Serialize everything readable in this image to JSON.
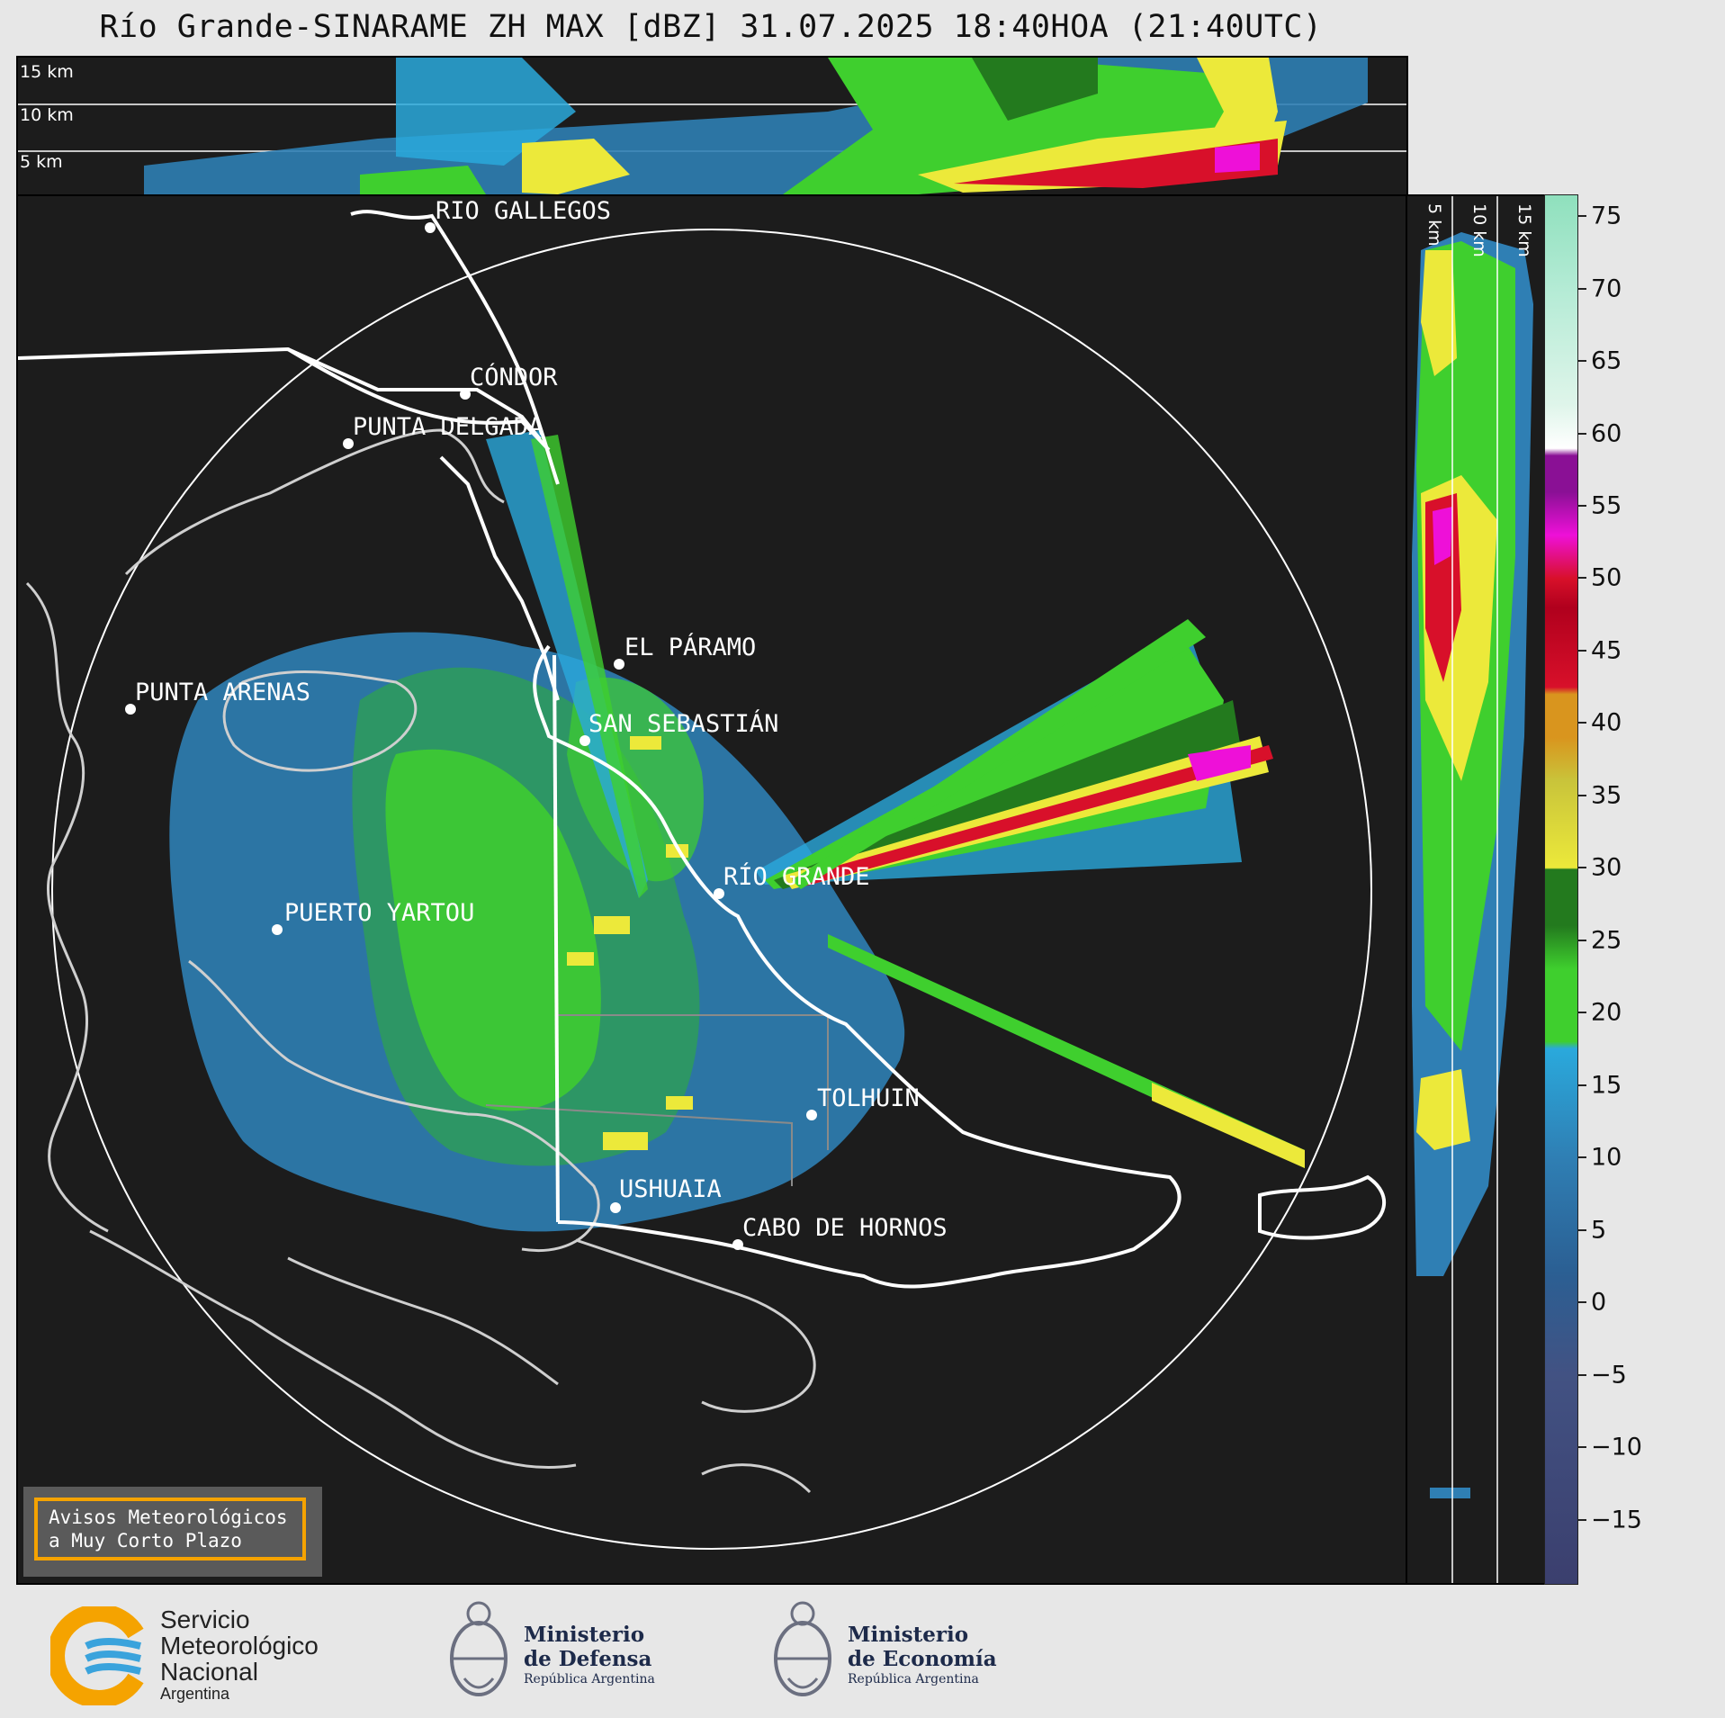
{
  "title": "Río Grande-SINARAME ZH MAX [dBZ] 31.07.2025 18:40HOA (21:40UTC)",
  "height_ref_top": [
    "15 km",
    "10 km",
    "5 km"
  ],
  "height_ref_side": [
    "5 km",
    "10 km",
    "15 km"
  ],
  "cities": {
    "rio_gallegos": "RIO GALLEGOS",
    "condor": "CÓNDOR",
    "punta_delgada": "PUNTA DELGADA",
    "el_paramo": "EL PÁRAMO",
    "punta_arenas": "PUNTA ARENAS",
    "san_sebastian": "SAN SEBASTIÁN",
    "rio_grande": "RÍO GRANDE",
    "puerto_yartou": "PUERTO YARTOU",
    "tolhuin": "TOLHUIN",
    "ushuaia": "USHUAIA",
    "cabo_de_hornos": "CABO DE HORNOS"
  },
  "colorbar": {
    "labels": [
      "75",
      "70",
      "65",
      "60",
      "55",
      "50",
      "45",
      "40",
      "35",
      "30",
      "25",
      "20",
      "15",
      "10",
      "5",
      "0",
      "−5",
      "−10",
      "−15"
    ],
    "range": [
      -19.5,
      76.5
    ],
    "colors": {
      "very_low": "#3b3f6e",
      "low": "#2f7fb4",
      "blue": "#2aa9dc",
      "green": "#3fcf2e",
      "dark_green": "#237a1e",
      "yellow": "#ece93a",
      "orange": "#d9951e",
      "red": "#d8102a",
      "magenta": "#ee10d8",
      "purple": "#8a1095",
      "white": "#ffffff",
      "pale_green": "#8fe0bd"
    }
  },
  "notice": {
    "line1": "Avisos Meteorológicos",
    "line2": "a Muy Corto Plazo"
  },
  "logos": {
    "smn": [
      "Servicio",
      "Meteorológico",
      "Nacional",
      "Argentina"
    ],
    "defensa": [
      "Ministerio",
      "de Defensa",
      "República Argentina"
    ],
    "economia": [
      "Ministerio",
      "de Economía",
      "República Argentina"
    ]
  }
}
